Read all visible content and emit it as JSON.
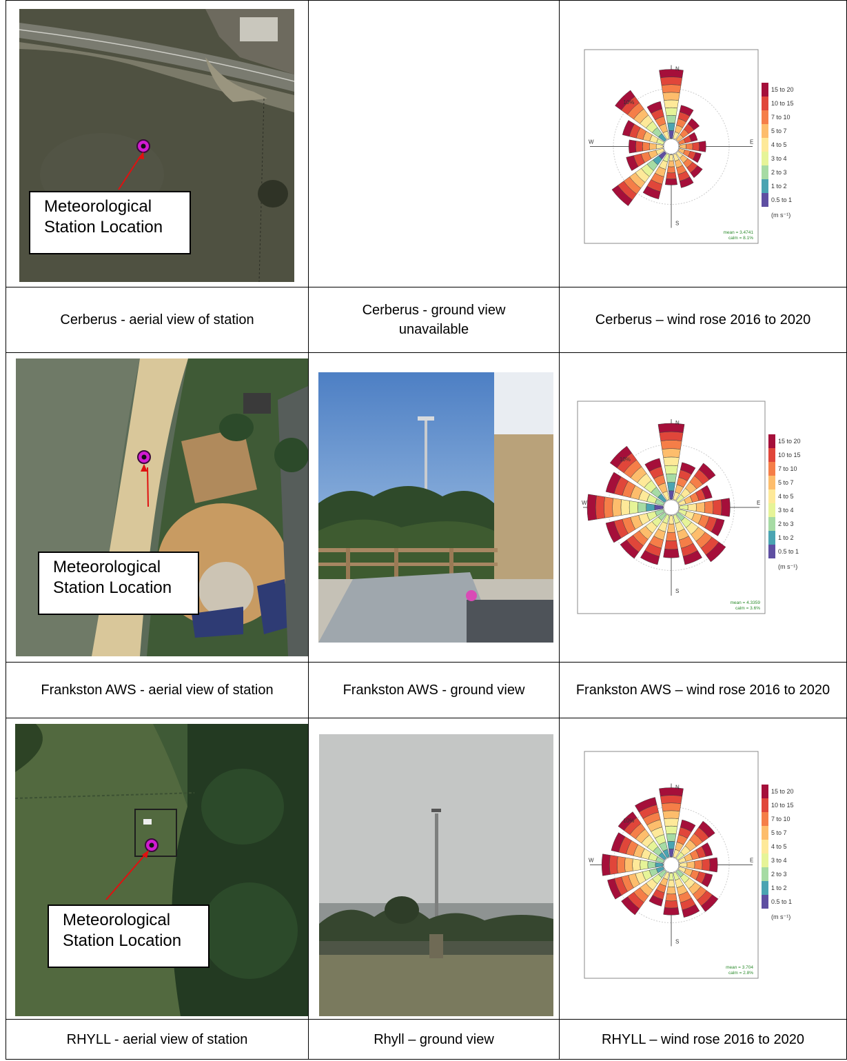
{
  "callout_label": [
    "Meteorological",
    "Station Location"
  ],
  "rows": [
    {
      "aerial_caption": "Cerberus - aerial view of station",
      "ground_caption": [
        "Cerberus - ground view",
        "unavailable"
      ],
      "rose_caption": "Cerberus – wind rose 2016 to 2020",
      "rose": {
        "mean": "mean = 3.4741",
        "calm": "calm = 8.1%"
      }
    },
    {
      "aerial_caption": "Frankston AWS - aerial view of station",
      "ground_caption": [
        "Frankston AWS - ground view"
      ],
      "rose_caption": "Frankston AWS – wind rose 2016 to 2020",
      "rose": {
        "mean": "mean = 4.3359",
        "calm": "calm = 3.6%"
      }
    },
    {
      "aerial_caption": "RHYLL - aerial view of station",
      "ground_caption": [
        "Rhyll – ground view"
      ],
      "rose_caption": "RHYLL – wind rose 2016 to 2020",
      "rose": {
        "mean": "mean = 3.704",
        "calm": "calm = 2.8%"
      }
    }
  ],
  "wind_rose_legend": {
    "bins": [
      "15 to 20",
      "10 to 15",
      "7 to 10",
      "5 to 7",
      "4 to 5",
      "3 to 4",
      "2 to 3",
      "1 to 2",
      "0.5 to 1"
    ],
    "colors": [
      "#a50f3a",
      "#e0463a",
      "#f57e48",
      "#fdbd6c",
      "#fee999",
      "#e6f498",
      "#a6dba4",
      "#4aa4b2",
      "#5e4fa2"
    ],
    "unit": "(m s⁻¹)"
  },
  "compass": {
    "n": "N",
    "e": "E",
    "s": "S",
    "w": "W",
    "ring": "10%"
  }
}
